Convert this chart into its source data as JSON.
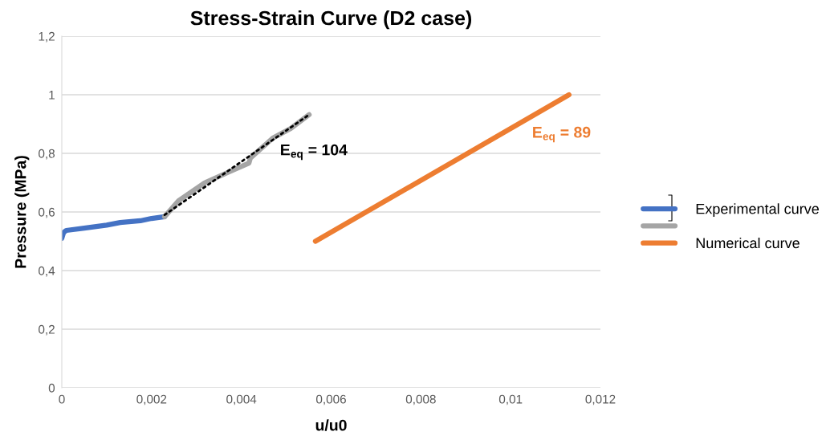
{
  "chart_data": {
    "type": "line",
    "title": "Stress-Strain Curve (D2 case)",
    "xlabel": "u/u0",
    "ylabel": "Pressure (MPa)",
    "series": [
      {
        "name": "Experimental curve",
        "color": "#4472c4",
        "x": [
          0,
          4e-05,
          0.0001,
          0.0005,
          0.001,
          0.0013,
          0.00175,
          0.002,
          0.00229
        ],
        "values": [
          0.51,
          0.53,
          0.537,
          0.545,
          0.555,
          0.564,
          0.57,
          0.578,
          0.584
        ]
      },
      {
        "color": "#a5a5a5",
        "x": [
          0.00229,
          0.0026,
          0.00318,
          0.0037,
          0.00417,
          0.0042,
          0.0047,
          0.0051,
          0.00551
        ],
        "values": [
          0.584,
          0.638,
          0.699,
          0.735,
          0.767,
          0.784,
          0.852,
          0.885,
          0.932
        ]
      },
      {
        "color": "#000000",
        "line_style": "dotted",
        "x": [
          0.00229,
          0.00551
        ],
        "values": [
          0.59,
          0.932
        ]
      },
      {
        "name": "Numerical curve",
        "color": "#ed7d31",
        "x": [
          0.00565,
          0.0113
        ],
        "values": [
          0.5,
          1.0
        ]
      }
    ],
    "annotations": [
      "E$_{eq}$ = 104",
      "E$_{eq}$ = 89"
    ],
    "xlim": [
      0,
      0.012
    ],
    "xticks": [
      0,
      {
        "value": 0.002,
        "label": "0,002"
      },
      {
        "value": 0.004,
        "label": "0,004"
      },
      {
        "value": 0.006,
        "label": "0,006"
      },
      {
        "value": 0.008,
        "label": "0,008"
      },
      {
        "value": 0.01,
        "label": "0,01"
      },
      {
        "value": 0.012,
        "label": "0,012"
      }
    ],
    "ylim": [
      0,
      1.2
    ],
    "yticks": [
      0,
      {
        "value": 0.2,
        "label": "0,2"
      },
      {
        "value": 0.4,
        "label": "0,4"
      },
      {
        "value": 0.6,
        "label": "0,6"
      },
      {
        "value": 0.8,
        "label": "0,8"
      },
      1,
      {
        "value": 1.2,
        "label": "1,2"
      }
    ],
    "grid": "y",
    "legend": "right",
    "marker": "none"
  }
}
